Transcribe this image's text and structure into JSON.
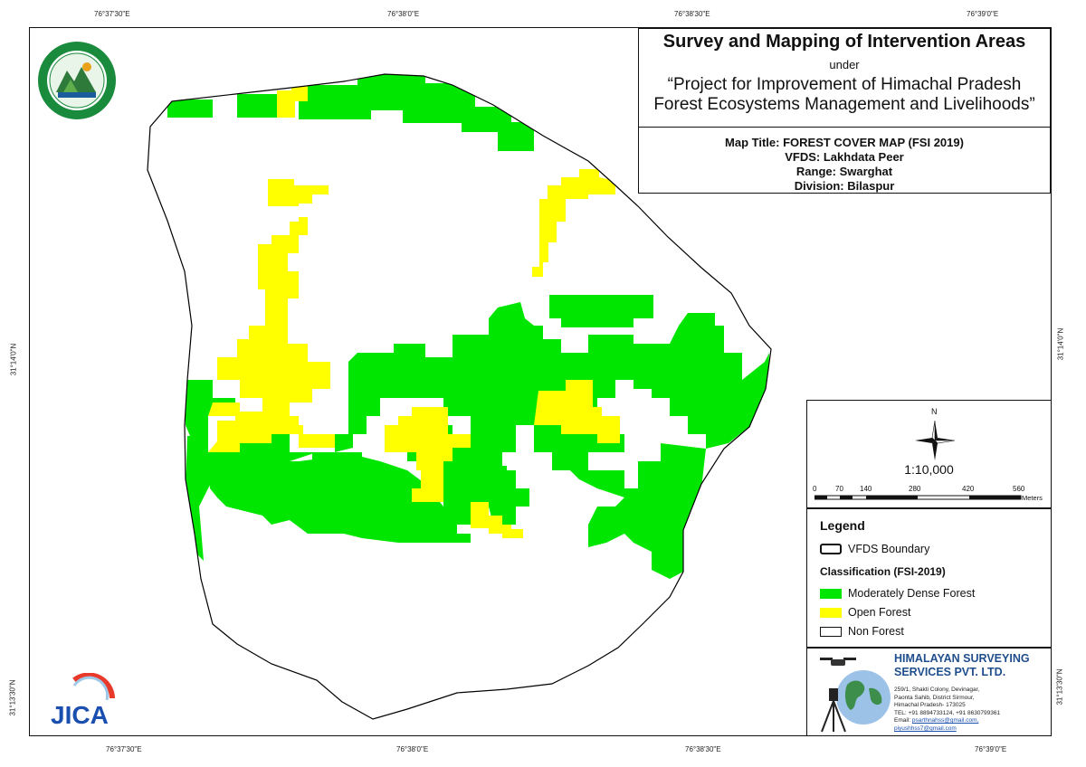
{
  "coords": {
    "top": [
      "76°37'30\"E",
      "76°38'0\"E",
      "76°38'30\"E",
      "76°39'0\"E"
    ],
    "bottom": [
      "76°37'30\"E",
      "76°38'0\"E",
      "76°38'30\"E",
      "76°39'0\"E"
    ],
    "left": [
      "31°14'0\"N",
      "31°13'30\"N"
    ],
    "right": [
      "31°14'0\"N",
      "31°13'30\"N"
    ]
  },
  "title": {
    "main": "Survey and Mapping of Intervention Areas",
    "under": "under",
    "project_line1": "“Project for Improvement of Himachal Pradesh",
    "project_line2": "Forest Ecosystems Management and Livelihoods”",
    "map_title": "Map Title: FOREST COVER MAP (FSI 2019)",
    "vfds": "VFDS: Lakhdata Peer",
    "range": "Range: Swarghat",
    "division": "Division: Bilaspur"
  },
  "scale": {
    "north": "N",
    "ratio": "1:10,000",
    "ticks": [
      "0",
      "70",
      "140",
      "280",
      "420",
      "560"
    ],
    "unit": "Meters"
  },
  "legend": {
    "title": "Legend",
    "boundary_label": "VFDS Boundary",
    "classification_title": "Classification (FSI-2019)",
    "items": [
      {
        "label": "Moderately Dense Forest",
        "color": "#00e600"
      },
      {
        "label": "Open Forest",
        "color": "#ffff00"
      },
      {
        "label": "Non Forest",
        "color": "#ffffff"
      }
    ]
  },
  "company": {
    "name_line1": "HIMALAYAN SURVEYING",
    "name_line2": "SERVICES PVT. LTD.",
    "address1": "259/1, Shakti Colony, Devinagar,",
    "address2": "Paonta Sahib, District Sirmour,",
    "address3": "Himachal Pradesh- 173025",
    "tel": "TEL: +91 8894733124, +91 8630799361",
    "email_label": "Email:",
    "email1": "psarthnahss@gmail.com,",
    "email2": "piyushhss7@gmail.com"
  },
  "logos": {
    "jica": "JICA",
    "hp_forest_icon": "hp-forest-department-seal"
  },
  "colors": {
    "moderately_dense": "#00e600",
    "open": "#ffff00",
    "non_forest": "#ffffff",
    "boundary": "#000000"
  }
}
